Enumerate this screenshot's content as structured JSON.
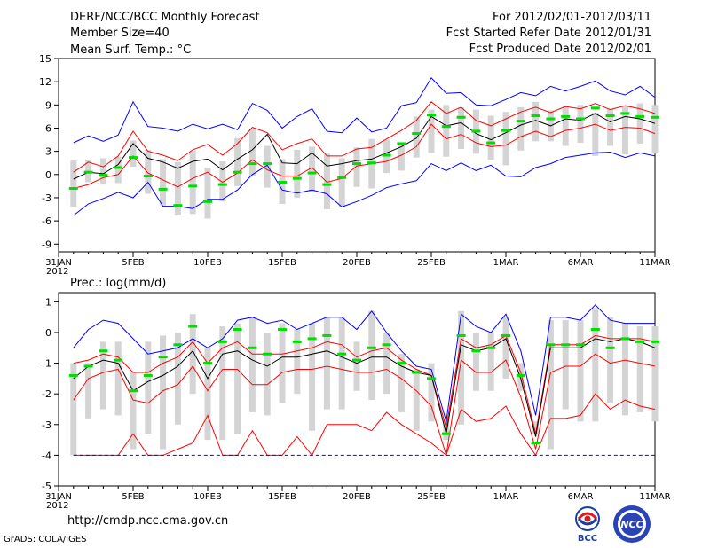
{
  "header": {
    "title": "DERF/NCC/BCC Monthly Forecast",
    "member_size": "Member Size=40",
    "for_period": "For 2012/02/01-2012/03/11",
    "fcst_started": "Fcst Started Refer Date 2012/01/31",
    "fcst_produced": "Fcst Produced Date 2012/02/01"
  },
  "footer": {
    "url": "http://cmdp.ncc.cma.gov.cn",
    "grads_credit": "GrADS: COLA/IGES",
    "logo_bcc_text": "BCC",
    "logo_ncc_text": "NCC"
  },
  "colors": {
    "envelope": "#0000ff",
    "percentile": "#ff0000",
    "mean": "#000000",
    "median": "#00dd00",
    "box": "#d4d4d4",
    "baseline": "#0000ff"
  },
  "chart_data": [
    {
      "type": "box-line",
      "panel": "temperature",
      "title": "Mean Surf. Temp.: °C",
      "x_tick_labels": [
        "31JAN\n2012",
        "5FEB",
        "10FEB",
        "15FEB",
        "20FEB",
        "25FEB",
        "1MAR",
        "6MAR",
        "11MAR"
      ],
      "x_tick_days": [
        0,
        5,
        10,
        15,
        20,
        25,
        30,
        35,
        40
      ],
      "xlim": [
        0,
        40
      ],
      "ylim": [
        -10,
        15
      ],
      "yticks": [
        -9,
        -6,
        -3,
        0,
        3,
        6,
        9,
        12,
        15
      ],
      "days": [
        1,
        2,
        3,
        4,
        5,
        6,
        7,
        8,
        9,
        10,
        11,
        12,
        13,
        14,
        15,
        16,
        17,
        18,
        19,
        20,
        21,
        22,
        23,
        24,
        25,
        26,
        27,
        28,
        29,
        30,
        31,
        32,
        33,
        34,
        35,
        36,
        37,
        38,
        39,
        40
      ],
      "box_low": [
        -4.2,
        -1.0,
        -1.3,
        -1.1,
        1.0,
        -2.5,
        -4.0,
        -5.3,
        -5.1,
        -5.7,
        -3.5,
        -1.5,
        -0.2,
        -1.7,
        -3.8,
        -3.0,
        -2.3,
        -4.5,
        -4.2,
        -1.6,
        -1.8,
        0.2,
        0.5,
        2.2,
        2.8,
        2.3,
        3.3,
        2.7,
        1.9,
        1.2,
        3.1,
        4.3,
        4.3,
        3.7,
        4.1,
        2.4,
        3.7,
        2.6,
        4.0,
        2.7
      ],
      "box_high": [
        1.8,
        1.9,
        2.1,
        2.3,
        4.4,
        3.2,
        2.0,
        1.6,
        3.1,
        0.9,
        1.7,
        4.7,
        5.9,
        3.7,
        2.0,
        3.2,
        3.6,
        2.7,
        2.1,
        3.5,
        4.6,
        4.5,
        4.1,
        7.5,
        8.4,
        9.0,
        8.7,
        8.4,
        7.6,
        8.1,
        8.7,
        9.4,
        8.3,
        8.8,
        9.0,
        8.0,
        8.5,
        8.8,
        9.2,
        9.0
      ],
      "series": [
        {
          "name": "max",
          "color": "#0000ff",
          "values": [
            4.1,
            5.0,
            4.3,
            5.1,
            9.4,
            6.2,
            6.0,
            5.6,
            6.5,
            5.9,
            6.5,
            5.8,
            9.2,
            8.3,
            6.0,
            7.5,
            8.5,
            5.6,
            5.4,
            7.3,
            5.5,
            6.0,
            8.9,
            9.3,
            12.5,
            10.5,
            10.6,
            9.0,
            8.9,
            9.7,
            10.6,
            10.2,
            11.4,
            10.8,
            11.4,
            12.1,
            10.8,
            10.3,
            11.4,
            10.0
          ]
        },
        {
          "name": "p75",
          "color": "#ff0000",
          "values": [
            0.3,
            1.6,
            1.0,
            2.4,
            5.6,
            3.0,
            2.5,
            1.8,
            3.2,
            3.9,
            2.5,
            4.0,
            6.1,
            5.4,
            3.2,
            4.0,
            4.6,
            2.4,
            2.4,
            3.3,
            3.5,
            4.6,
            5.7,
            7.0,
            9.4,
            7.9,
            8.7,
            7.0,
            6.3,
            7.2,
            8.1,
            8.7,
            8.0,
            8.8,
            8.5,
            9.2,
            8.4,
            8.9,
            8.5,
            7.9
          ]
        },
        {
          "name": "mean",
          "color": "#000000",
          "values": [
            -0.6,
            0.3,
            0.1,
            1.3,
            4.0,
            2.1,
            1.6,
            0.8,
            1.7,
            2.0,
            0.6,
            2.0,
            3.2,
            5.2,
            1.5,
            1.4,
            2.8,
            1.1,
            1.4,
            1.8,
            2.0,
            2.8,
            3.6,
            4.7,
            7.5,
            6.3,
            6.7,
            5.3,
            4.5,
            5.4,
            6.4,
            7.0,
            6.3,
            7.2,
            7.0,
            7.9,
            6.8,
            7.5,
            7.2,
            6.6
          ]
        },
        {
          "name": "p25",
          "color": "#ff0000",
          "values": [
            -1.8,
            -1.3,
            -0.4,
            0.0,
            2.4,
            0.2,
            -0.7,
            -1.6,
            -0.5,
            0.3,
            -1.0,
            0.2,
            1.9,
            0.6,
            -0.2,
            -0.2,
            0.9,
            -1.0,
            -0.5,
            1.1,
            1.4,
            1.7,
            2.5,
            3.6,
            6.5,
            4.6,
            5.2,
            4.1,
            3.6,
            3.8,
            4.9,
            5.6,
            4.9,
            5.7,
            6.0,
            6.5,
            5.7,
            6.1,
            6.0,
            5.3
          ]
        },
        {
          "name": "min",
          "color": "#0000ff",
          "values": [
            -5.3,
            -3.8,
            -3.1,
            -2.3,
            -3.0,
            -1.0,
            -4.1,
            -4.1,
            -4.4,
            -3.2,
            -3.2,
            -2.0,
            0.0,
            1.2,
            -2.0,
            -2.4,
            -2.0,
            -2.5,
            -4.2,
            -3.5,
            -2.7,
            -1.7,
            -1.2,
            -0.8,
            1.4,
            0.5,
            1.5,
            0.5,
            1.2,
            -0.2,
            -0.3,
            0.9,
            1.4,
            2.2,
            2.5,
            2.8,
            2.9,
            2.2,
            2.8,
            2.4
          ]
        }
      ],
      "median": [
        -1.8,
        0.3,
        -0.1,
        0.9,
        2.2,
        -0.2,
        -1.9,
        -4.0,
        -1.5,
        -3.5,
        -1.3,
        0.3,
        1.4,
        1.4,
        -1.0,
        -0.5,
        0.2,
        -1.3,
        -0.4,
        1.4,
        1.5,
        2.5,
        4.0,
        5.3,
        7.7,
        6.2,
        7.4,
        5.6,
        4.1,
        5.7,
        6.9,
        7.6,
        7.2,
        7.5,
        7.2,
        8.6,
        7.6,
        7.9,
        7.5,
        7.4
      ]
    },
    {
      "type": "box-line",
      "panel": "precipitation",
      "title": "Prec.: log(mm/d)",
      "x_tick_labels": [
        "31JAN\n2012",
        "5FEB",
        "10FEB",
        "15FEB",
        "20FEB",
        "25FEB",
        "1MAR",
        "6MAR",
        "11MAR"
      ],
      "x_tick_days": [
        0,
        5,
        10,
        15,
        20,
        25,
        30,
        35,
        40
      ],
      "xlim": [
        0,
        40
      ],
      "ylim": [
        -5,
        1.3
      ],
      "yticks": [
        -5,
        -4,
        -3,
        -2,
        -1,
        0,
        1
      ],
      "days": [
        1,
        2,
        3,
        4,
        5,
        6,
        7,
        8,
        9,
        10,
        11,
        12,
        13,
        14,
        15,
        16,
        17,
        18,
        19,
        20,
        21,
        22,
        23,
        24,
        25,
        26,
        27,
        28,
        29,
        30,
        31,
        32,
        33,
        34,
        35,
        36,
        37,
        38,
        39,
        40
      ],
      "box_low": [
        -4.0,
        -2.8,
        -2.5,
        -2.7,
        -3.8,
        -3.3,
        -3.8,
        -3.0,
        -2.0,
        -3.5,
        -3.5,
        -3.3,
        -2.6,
        -2.7,
        -2.3,
        -2.0,
        -3.2,
        -2.5,
        -2.5,
        -1.9,
        -2.2,
        -2.0,
        -2.6,
        -3.2,
        -2.9,
        -3.5,
        -3.0,
        -1.9,
        -1.9,
        -1.5,
        -1.9,
        -3.3,
        -3.8,
        -2.5,
        -2.9,
        -2.9,
        -2.3,
        -2.7,
        -2.6,
        -2.9
      ],
      "box_high": [
        -1.0,
        -1.0,
        -0.3,
        -0.3,
        -1.3,
        -0.3,
        -0.1,
        0.0,
        0.6,
        -0.5,
        0.2,
        0.3,
        0.5,
        0.0,
        0.3,
        0.1,
        0.3,
        0.5,
        0.5,
        -0.3,
        0.7,
        0.0,
        -0.7,
        -1.2,
        -1.0,
        -2.8,
        0.7,
        0.0,
        0.0,
        0.5,
        -1.0,
        -2.9,
        0.4,
        0.4,
        0.4,
        0.8,
        0.5,
        0.3,
        0.2,
        0.2
      ],
      "series": [
        {
          "name": "max",
          "color": "#0000ff",
          "values": [
            -0.5,
            0.1,
            0.4,
            0.3,
            -0.2,
            -0.7,
            -0.6,
            -0.5,
            -0.2,
            -0.5,
            -0.2,
            0.4,
            0.5,
            0.3,
            0.4,
            0.1,
            0.3,
            0.5,
            0.5,
            0.1,
            0.7,
            0.0,
            -0.6,
            -1.1,
            -1.2,
            -2.9,
            0.6,
            0.2,
            0.0,
            0.6,
            -0.6,
            -2.7,
            0.5,
            0.5,
            0.4,
            0.9,
            0.4,
            0.3,
            0.3,
            0.3
          ]
        },
        {
          "name": "p75",
          "color": "#ff0000",
          "values": [
            -1.0,
            -0.9,
            -0.7,
            -0.8,
            -1.3,
            -1.3,
            -1.0,
            -0.8,
            -0.3,
            -1.0,
            -0.5,
            -0.3,
            -0.7,
            -0.7,
            -0.7,
            -0.6,
            -0.5,
            -0.3,
            -0.4,
            -0.8,
            -0.6,
            -0.5,
            -0.9,
            -1.2,
            -1.4,
            -3.1,
            -0.2,
            -0.5,
            -0.4,
            -0.1,
            -1.3,
            -3.3,
            -0.4,
            -0.4,
            -0.4,
            -0.1,
            -0.2,
            -0.2,
            -0.2,
            -0.3
          ]
        },
        {
          "name": "mean",
          "color": "#000000",
          "values": [
            -1.5,
            -1.1,
            -0.9,
            -1.0,
            -1.9,
            -1.6,
            -1.4,
            -1.1,
            -0.6,
            -1.5,
            -0.7,
            -0.6,
            -0.9,
            -1.1,
            -0.8,
            -0.8,
            -0.7,
            -0.6,
            -0.8,
            -1.0,
            -0.8,
            -0.8,
            -1.1,
            -1.3,
            -1.4,
            -3.3,
            -0.4,
            -0.6,
            -0.5,
            -0.2,
            -1.5,
            -3.4,
            -0.5,
            -0.5,
            -0.5,
            -0.2,
            -0.3,
            -0.2,
            -0.3,
            -0.5
          ]
        },
        {
          "name": "p25",
          "color": "#ff0000",
          "values": [
            -2.2,
            -1.5,
            -1.3,
            -1.2,
            -2.2,
            -2.3,
            -1.9,
            -1.7,
            -1.1,
            -1.9,
            -1.2,
            -1.2,
            -1.7,
            -1.7,
            -1.3,
            -1.2,
            -1.2,
            -1.1,
            -1.2,
            -1.3,
            -1.3,
            -1.2,
            -1.5,
            -1.9,
            -2.4,
            -4.0,
            -0.9,
            -1.3,
            -1.3,
            -0.9,
            -2.1,
            -3.8,
            -1.3,
            -1.1,
            -1.1,
            -0.7,
            -1.0,
            -0.9,
            -1.0,
            -1.1
          ]
        },
        {
          "name": "p10",
          "color": "#ff0000",
          "values": [
            -4.0,
            -4.0,
            -4.0,
            -4.0,
            -3.3,
            -4.0,
            -4.0,
            -3.8,
            -3.6,
            -2.7,
            -4.0,
            -4.0,
            -3.2,
            -4.0,
            -4.0,
            -3.4,
            -4.0,
            -3.0,
            -3.0,
            -3.0,
            -3.2,
            -2.6,
            -3.0,
            -3.3,
            -3.6,
            -4.0,
            -2.5,
            -2.9,
            -2.8,
            -2.4,
            -3.3,
            -4.0,
            -2.8,
            -2.8,
            -2.7,
            -2.0,
            -2.5,
            -2.2,
            -2.4,
            -2.5
          ]
        },
        {
          "name": "min",
          "color": "#0000ff",
          "dashed": true,
          "values": [
            -4,
            -4,
            -4,
            -4,
            -4,
            -4,
            -4,
            -4,
            -4,
            -4,
            -4,
            -4,
            -4,
            -4,
            -4,
            -4,
            -4,
            -4,
            -4,
            -4,
            -4,
            -4,
            -4,
            -4,
            -4,
            -4,
            -4,
            -4,
            -4,
            -4,
            -4,
            -4,
            -4,
            -4,
            -4,
            -4,
            -4,
            -4,
            -4,
            -4
          ]
        }
      ],
      "median": [
        -1.4,
        -1.1,
        -0.6,
        -0.9,
        -1.9,
        -1.4,
        -0.8,
        -0.4,
        0.2,
        -1.0,
        -0.3,
        0.1,
        -0.5,
        -0.7,
        0.1,
        -0.3,
        -0.2,
        -0.1,
        -0.7,
        -0.9,
        -0.5,
        -0.4,
        -1.0,
        -1.3,
        -1.5,
        -3.3,
        -0.1,
        -0.6,
        -0.5,
        -0.1,
        -1.4,
        -3.6,
        -0.4,
        -0.4,
        -0.4,
        0.1,
        -0.5,
        -0.2,
        -0.3,
        -0.3
      ]
    }
  ]
}
